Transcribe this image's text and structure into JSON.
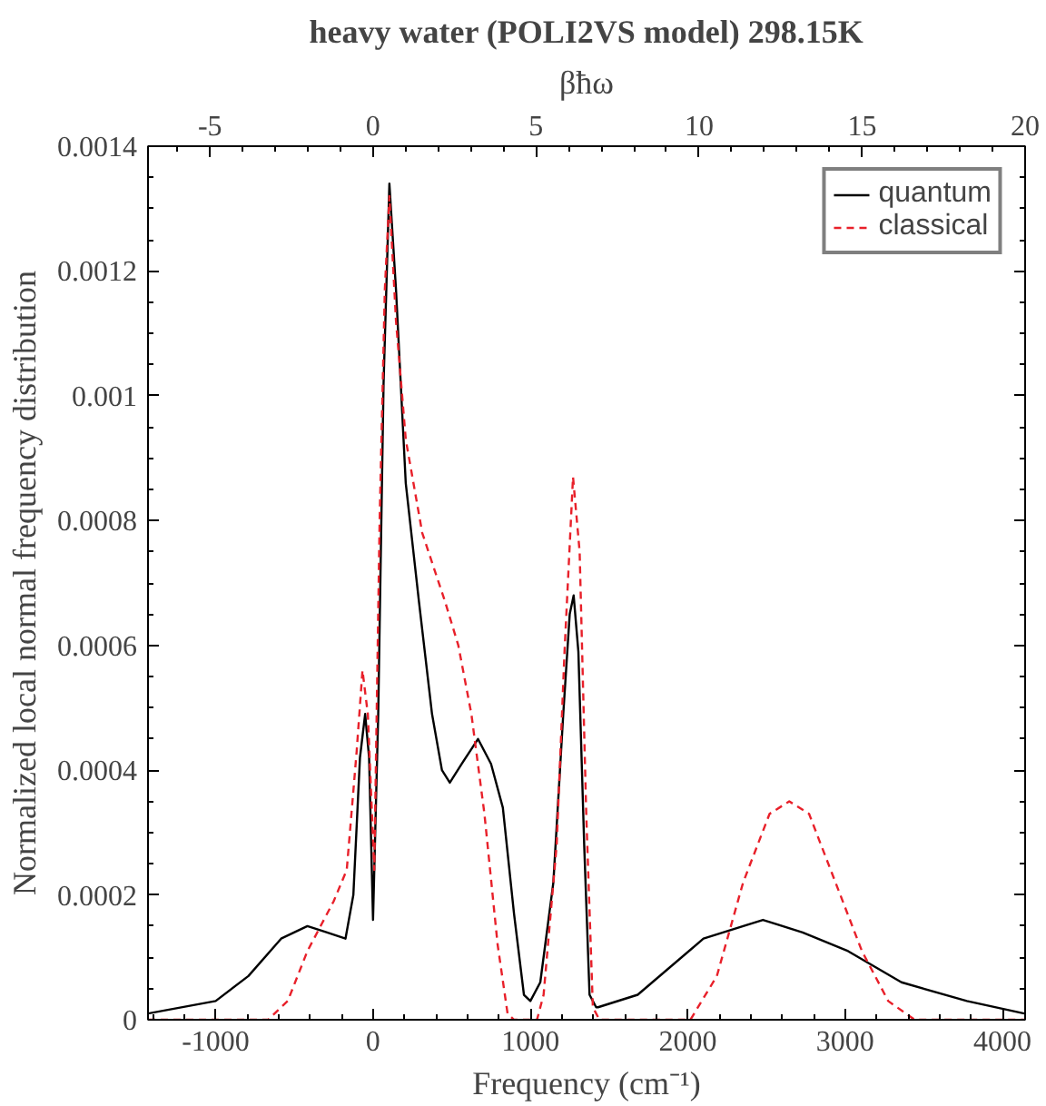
{
  "chart_data": {
    "type": "line",
    "title": "heavy water (POLI2VS model) 298.15K",
    "xlabel": "Frequency (cm⁻¹)",
    "ylabel": "Normalized local normal frequency distribution",
    "x2label": "βħω",
    "xlim": [
      -1430,
      4144
    ],
    "xticks": [
      -1000,
      0,
      1000,
      2000,
      3000,
      4000
    ],
    "x2lim": [
      -6.9,
      20
    ],
    "x2ticks": [
      -5,
      0,
      5,
      10,
      15,
      20
    ],
    "ylim": [
      0,
      0.0014
    ],
    "yticks": [
      0,
      0.0002,
      0.0004,
      0.0006,
      0.0008,
      0.001,
      0.0012,
      0.0014
    ],
    "grid": false,
    "legend": "top right",
    "series": [
      {
        "name": "quantum",
        "color": "#000000",
        "line_style": "solid",
        "x": [
          -1430,
          -1000,
          -792,
          -584,
          -417,
          -292,
          -175,
          -125,
          -83,
          -50,
          -25,
          0,
          33,
          67,
          104,
          146,
          208,
          292,
          375,
          438,
          488,
          563,
          667,
          750,
          825,
          896,
          959,
          1000,
          1063,
          1146,
          1209,
          1250,
          1275,
          1305,
          1342,
          1376,
          1418,
          1430,
          1682,
          2100,
          2478,
          2730,
          3019,
          3358,
          3774,
          4138
        ],
        "values": [
          1e-05,
          3e-05,
          7e-05,
          0.00013,
          0.00015,
          0.00014,
          0.00013,
          0.0002,
          0.00042,
          0.00049,
          0.00042,
          0.00016,
          0.00049,
          0.00102,
          0.00134,
          0.00117,
          0.00086,
          0.00067,
          0.00049,
          0.0004,
          0.00038,
          0.00041,
          0.00045,
          0.00041,
          0.00034,
          0.00017,
          4e-05,
          3e-05,
          6e-05,
          0.00022,
          0.00049,
          0.00065,
          0.00068,
          0.00059,
          0.00028,
          4e-05,
          2e-05,
          2e-05,
          4e-05,
          0.00013,
          0.00016,
          0.00014,
          0.00011,
          6e-05,
          3e-05,
          1e-05
        ]
      },
      {
        "name": "classical",
        "color": "#e8202a",
        "line_style": "dashed",
        "x": [
          -1430,
          -667,
          -542,
          -417,
          -250,
          -167,
          -104,
          -67,
          -33,
          8,
          42,
          75,
          104,
          146,
          208,
          313,
          458,
          542,
          625,
          708,
          792,
          855,
          896,
          1042,
          1084,
          1167,
          1217,
          1271,
          1313,
          1355,
          1397,
          1439,
          2017,
          2185,
          2352,
          2520,
          2645,
          2771,
          2939,
          3107,
          3274,
          3442,
          4138
        ],
        "values": [
          0,
          0,
          3e-05,
          0.00011,
          0.00019,
          0.00024,
          0.00043,
          0.00056,
          0.00049,
          0.00024,
          0.0008,
          0.00117,
          0.00132,
          0.00112,
          0.00093,
          0.00078,
          0.00067,
          0.0006,
          0.00049,
          0.00033,
          0.00012,
          1e-05,
          0,
          0,
          4e-05,
          0.00028,
          0.00059,
          0.00087,
          0.00075,
          0.00033,
          2e-05,
          0,
          0,
          7e-05,
          0.00022,
          0.00033,
          0.00035,
          0.00033,
          0.00022,
          0.00011,
          3e-05,
          0,
          0
        ]
      }
    ]
  }
}
